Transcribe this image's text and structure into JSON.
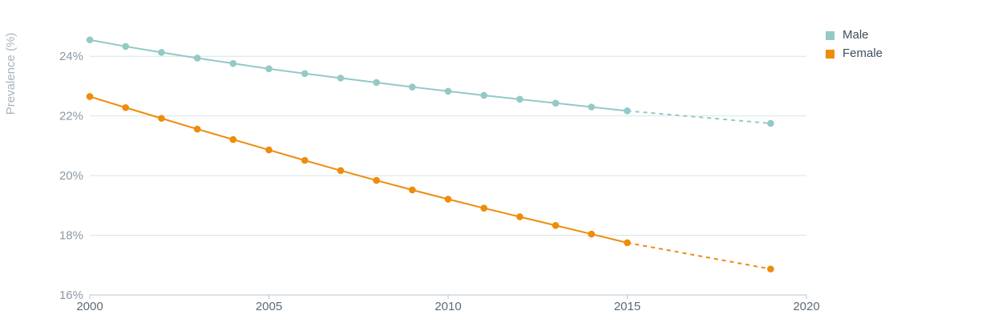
{
  "chart_data": {
    "type": "line",
    "title": "",
    "xlabel": "",
    "ylabel": "Prevalence (%)",
    "xlim": [
      2000,
      2020
    ],
    "ylim": [
      16,
      25
    ],
    "x_ticks": [
      "2000",
      "2005",
      "2010",
      "2015",
      "2020"
    ],
    "y_ticks": [
      "16%",
      "18%",
      "20%",
      "22%",
      "24%"
    ],
    "grid": true,
    "legend_position": "top-right",
    "series": [
      {
        "name": "Male",
        "color": "#93c9c6",
        "x": [
          2000,
          2001,
          2002,
          2003,
          2004,
          2005,
          2006,
          2007,
          2008,
          2009,
          2010,
          2011,
          2012,
          2013,
          2014,
          2015,
          2019
        ],
        "values": [
          24.55,
          24.33,
          24.13,
          23.94,
          23.76,
          23.58,
          23.42,
          23.27,
          23.12,
          22.97,
          22.83,
          22.69,
          22.56,
          22.43,
          22.3,
          22.17,
          21.75
        ],
        "projected_from_index": 15
      },
      {
        "name": "Female",
        "color": "#ee8c0b",
        "x": [
          2000,
          2001,
          2002,
          2003,
          2004,
          2005,
          2006,
          2007,
          2008,
          2009,
          2010,
          2011,
          2012,
          2013,
          2014,
          2015,
          2019
        ],
        "values": [
          22.65,
          22.28,
          21.92,
          21.56,
          21.21,
          20.86,
          20.51,
          20.17,
          19.84,
          19.52,
          19.21,
          18.91,
          18.62,
          18.33,
          18.04,
          17.75,
          16.87
        ],
        "projected_from_index": 15
      }
    ]
  }
}
